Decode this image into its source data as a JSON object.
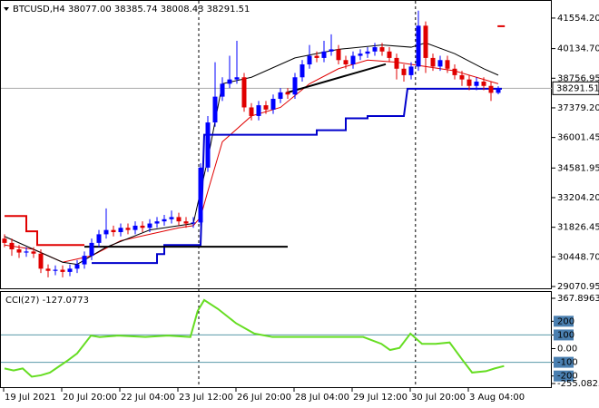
{
  "chart_data": {
    "type": "candlestick",
    "title": "BTCUSD,H4  38077.00 38385.74 38008.43 38291.51",
    "ylim": [
      28986.9,
      42352.8
    ],
    "yticks": [
      {
        "value": 41554.2,
        "label": "41554.20"
      },
      {
        "value": 40134.7,
        "label": "40134.70"
      },
      {
        "value": 38756.95,
        "label": "38756.95"
      },
      {
        "value": 37379.2,
        "label": "37379.20"
      },
      {
        "value": 36001.45,
        "label": "36001.45"
      },
      {
        "value": 34581.95,
        "label": "34581.95"
      },
      {
        "value": 33204.2,
        "label": "33204.20"
      },
      {
        "value": 31826.45,
        "label": "31826.45"
      },
      {
        "value": 30448.7,
        "label": "30448.70"
      },
      {
        "value": 29070.95,
        "label": "29070.95"
      }
    ],
    "xticks": [
      {
        "value": 0,
        "label": "19 Jul 2021"
      },
      {
        "value": 8,
        "label": "20 Jul 20:00"
      },
      {
        "value": 16,
        "label": "22 Jul 04:00"
      },
      {
        "value": 24,
        "label": "23 Jul 12:00"
      },
      {
        "value": 32,
        "label": "26 Jul 20:00"
      },
      {
        "value": 40,
        "label": "28 Jul 04:00"
      },
      {
        "value": 48,
        "label": "29 Jul 12:00"
      },
      {
        "value": 56,
        "label": "30 Jul 20:00"
      },
      {
        "value": 64,
        "label": "3 Aug 04:00"
      }
    ],
    "separators": [
      26.75,
      56.6
    ],
    "current_price": 38291.51,
    "up_color": "#0000ff",
    "down_color": "#e00000",
    "open": [
      31300,
      31100,
      30800,
      30650,
      30700,
      30600,
      29900,
      29800,
      29850,
      29750,
      29900,
      30100,
      30500,
      31100,
      31500,
      31700,
      31600,
      31800,
      31700,
      31900,
      31800,
      32000,
      32100,
      32200,
      32300,
      32100,
      32000,
      32050,
      34600,
      36700,
      37900,
      38500,
      38700,
      38800,
      37400,
      37000,
      37500,
      37300,
      37800,
      38100,
      38000,
      38800,
      39400,
      39800,
      39700,
      40000,
      40100,
      39600,
      39400,
      39800,
      39900,
      40000,
      40200,
      40000,
      39700,
      39200,
      38900,
      39300,
      41200,
      39700,
      39300,
      39600,
      39200,
      38900,
      38700,
      38400,
      38600,
      38400,
      38077
    ],
    "high": [
      31500,
      31300,
      31000,
      30900,
      30900,
      30800,
      30100,
      30050,
      30050,
      30100,
      30300,
      30700,
      31300,
      31700,
      32700,
      31900,
      32000,
      32000,
      32100,
      32100,
      32200,
      32300,
      32400,
      32600,
      32500,
      32300,
      32300,
      34800,
      37000,
      39500,
      38800,
      39800,
      40500,
      39000,
      37600,
      37700,
      37700,
      38000,
      38300,
      38300,
      39000,
      39600,
      40300,
      40000,
      40500,
      40800,
      40300,
      39800,
      40000,
      40100,
      40200,
      40400,
      40400,
      40200,
      39900,
      39400,
      39500,
      41900,
      41400,
      39900,
      39800,
      39800,
      39400,
      39100,
      38900,
      38800,
      38800,
      38600,
      38385.74
    ],
    "low": [
      30900,
      30500,
      30400,
      30450,
      30400,
      29700,
      29500,
      29600,
      29500,
      29550,
      29700,
      29900,
      30300,
      30900,
      31300,
      31400,
      31400,
      31500,
      31500,
      31600,
      31600,
      31800,
      31900,
      32000,
      31900,
      31800,
      31800,
      31900,
      34400,
      36500,
      37700,
      38300,
      38500,
      37200,
      36800,
      36800,
      37100,
      37100,
      37600,
      37800,
      37800,
      38600,
      39200,
      39500,
      39500,
      39800,
      39400,
      39200,
      39200,
      39600,
      39700,
      39800,
      39800,
      39500,
      38700,
      38600,
      38700,
      39100,
      39000,
      39100,
      39100,
      39000,
      38700,
      38400,
      38200,
      38200,
      38200,
      37700,
      38008.43
    ],
    "close": [
      31100,
      30800,
      30650,
      30700,
      30600,
      29900,
      29800,
      29850,
      29750,
      29900,
      30100,
      30500,
      31100,
      31500,
      31700,
      31600,
      31800,
      31700,
      31900,
      31800,
      32000,
      32100,
      32200,
      32300,
      32100,
      32000,
      32050,
      34600,
      36700,
      37900,
      38500,
      38700,
      38800,
      37400,
      37000,
      37500,
      37300,
      37800,
      38100,
      38000,
      38800,
      39400,
      39800,
      39700,
      40000,
      40100,
      39600,
      39400,
      39800,
      39900,
      40000,
      40200,
      40000,
      39700,
      39200,
      38900,
      39300,
      41200,
      39700,
      39300,
      39600,
      39200,
      38900,
      38700,
      38400,
      38600,
      38400,
      38077,
      38291.51
    ],
    "lines": [
      {
        "color": "#e00000",
        "width": 1,
        "x": [
          0,
          4,
          8,
          12,
          16,
          20,
          24,
          26,
          27,
          28,
          30,
          34,
          38,
          42,
          46,
          50,
          54,
          58,
          62,
          66,
          68
        ],
        "values": [
          31000,
          30800,
          30200,
          30500,
          31200,
          31500,
          31800,
          31900,
          32300,
          33500,
          35800,
          37000,
          37400,
          38500,
          39200,
          39600,
          39500,
          39300,
          39100,
          38700,
          38500
        ]
      },
      {
        "color": "#000000",
        "width": 1,
        "x": [
          0,
          4,
          8,
          10,
          14,
          20,
          26,
          28,
          30,
          34,
          40,
          46,
          52,
          56,
          58,
          62,
          66,
          68
        ],
        "values": [
          31400,
          30800,
          30200,
          30100,
          30900,
          31700,
          32000,
          35000,
          38500,
          38800,
          39700,
          40100,
          40300,
          40200,
          40400,
          39900,
          39200,
          38900
        ]
      },
      {
        "color": "#0000cc",
        "width": 2,
        "x": [
          12,
          21,
          21,
          22,
          22,
          27,
          27.5,
          43,
          43,
          47,
          47,
          50,
          50,
          55,
          55.5,
          68.5
        ],
        "values": [
          30160,
          30160,
          30580,
          30580,
          31000,
          31000,
          36130,
          36130,
          36340,
          36340,
          36890,
          36890,
          37000,
          37000,
          38270,
          38270
        ]
      },
      {
        "color": "#e00000",
        "width": 2,
        "x": [
          0,
          3,
          3,
          4.5,
          4.5,
          11
        ],
        "values": [
          32350,
          32350,
          31640,
          31640,
          31000,
          31000
        ]
      },
      {
        "color": "#000000",
        "width": 2,
        "x": [
          11,
          39
        ],
        "values": [
          30920,
          30920
        ]
      },
      {
        "color": "#000000",
        "width": 2,
        "x": [
          38.75,
          52.5
        ],
        "values": [
          38070,
          39410
        ]
      },
      {
        "color": "#e00000",
        "width": 2,
        "x": [
          67.9,
          68.9
        ],
        "values": [
          41176,
          41176
        ]
      }
    ],
    "cci": {
      "label": "CCI(27) -127.0773",
      "color": "#66dd22",
      "ylim": [
        -255.0825,
        367.8963
      ],
      "yticks": [
        367.8963,
        200,
        100,
        {
          "value": 0,
          "label": "0.00"
        },
        -100,
        -200,
        -255.0825
      ],
      "levels": [
        100,
        -100
      ],
      "x": [
        0,
        1.25,
        2.5,
        3.75,
        5,
        6.25,
        7.5,
        8.75,
        10,
        11.9,
        13.1,
        15.6,
        19.4,
        22.5,
        25.6,
        26.6,
        27.5,
        29.4,
        31.9,
        34.4,
        36.9,
        40.6,
        44.4,
        49.4,
        51.9,
        53.1,
        54.4,
        55.9,
        57.5,
        59.4,
        61.3,
        63.1,
        64.4,
        66.3,
        67.5,
        68.8
      ],
      "values": [
        -145,
        -160,
        -145,
        -205,
        -195,
        -175,
        -130,
        -85,
        -35,
        95,
        85,
        95,
        85,
        95,
        85,
        275,
        355,
        290,
        185,
        110,
        85,
        85,
        85,
        85,
        35,
        -10,
        5,
        110,
        35,
        35,
        45,
        -85,
        -175,
        -165,
        -145,
        -127.0773
      ]
    }
  }
}
